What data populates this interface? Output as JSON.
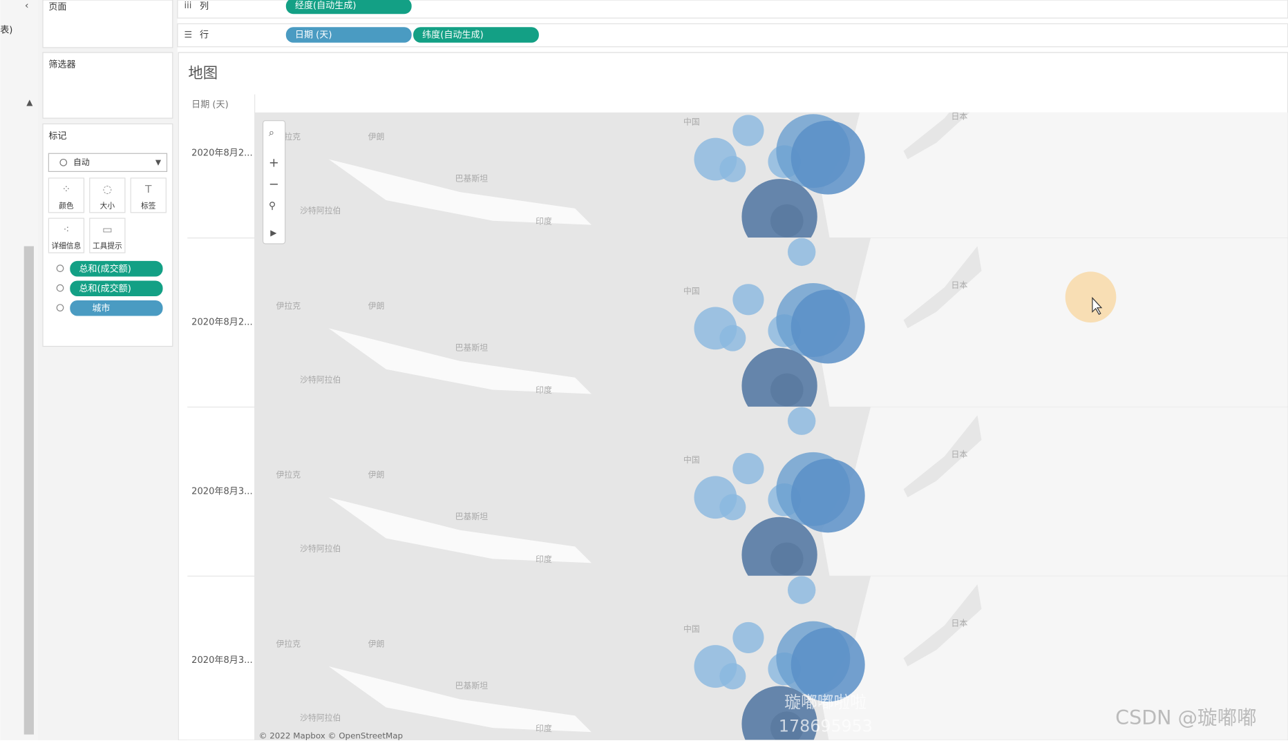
{
  "sidebar": {
    "partial_label": "表)"
  },
  "shelves": {
    "pages": "页面",
    "columns": {
      "label": "列",
      "pills": [
        "经度(自动生成)"
      ]
    },
    "rows": {
      "label": "行",
      "pills": [
        "日期 (天)",
        "纬度(自动生成)"
      ]
    }
  },
  "filters": {
    "title": "筛选器"
  },
  "marks": {
    "title": "标记",
    "mark_type": "自动",
    "buttons": [
      "颜色",
      "大小",
      "标签",
      "详细信息",
      "工具提示"
    ],
    "fields": [
      "总和(成交额)",
      "总和(成交额)",
      "城市"
    ]
  },
  "view": {
    "title": "地图",
    "row_header": "日期 (天)",
    "rows": [
      "2020年8月2...",
      "2020年8月2...",
      "2020年8月3...",
      "2020年8月3..."
    ],
    "map_labels": [
      "伊拉克",
      "伊朗",
      "巴基斯坦",
      "沙特阿拉伯",
      "印度",
      "中国",
      "日本"
    ],
    "attribution": "© 2022 Mapbox © OpenStreetMap",
    "watermark": [
      "璇嘟嘟啦啦",
      "178695953"
    ]
  },
  "footer_watermark": "CSDN @璇嘟嘟"
}
